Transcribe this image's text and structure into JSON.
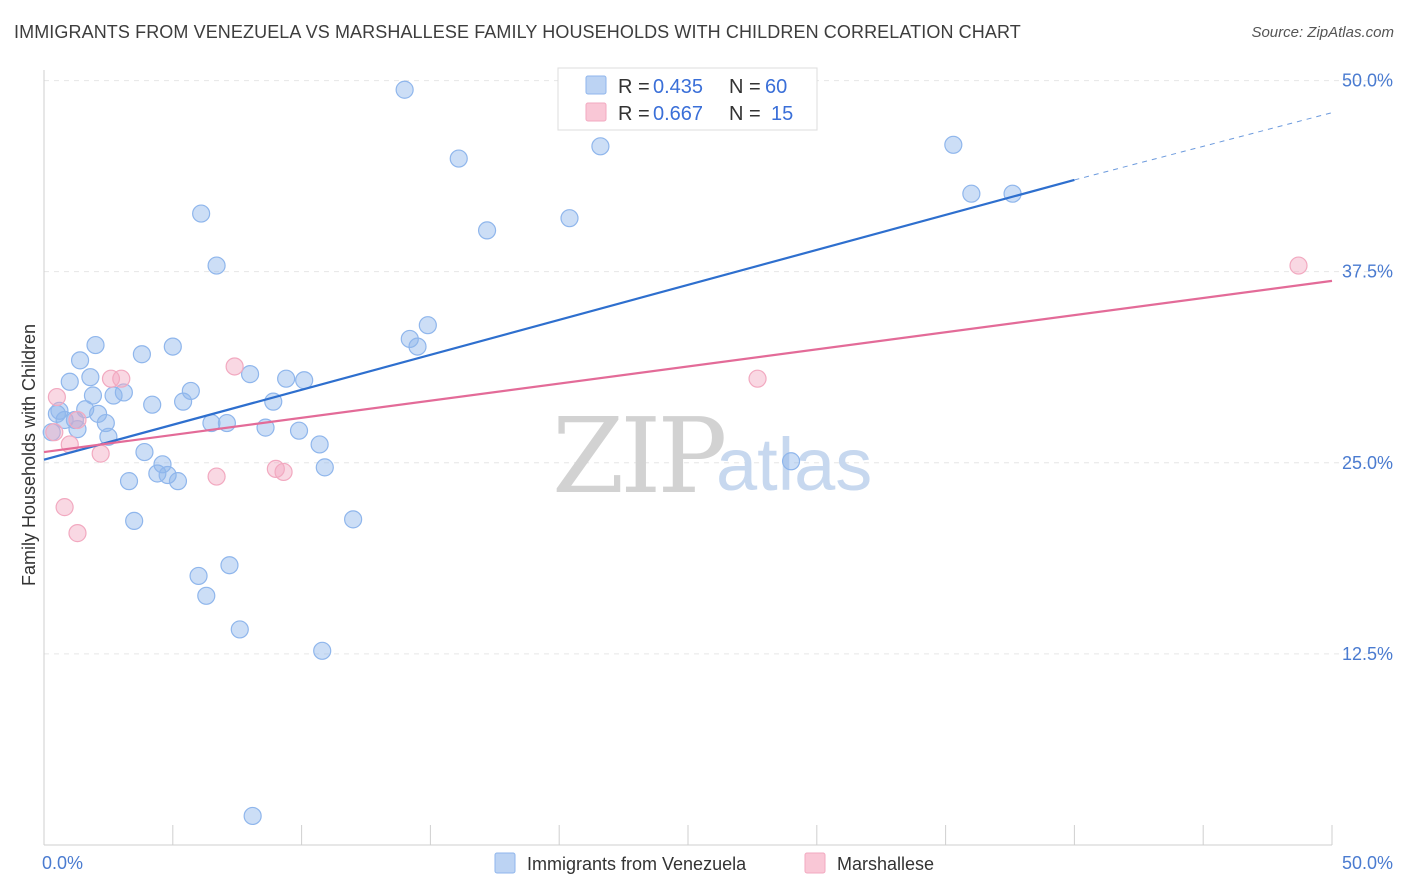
{
  "header": {
    "title": "IMMIGRANTS FROM VENEZUELA VS MARSHALLESE FAMILY HOUSEHOLDS WITH CHILDREN CORRELATION CHART",
    "source": "Source: ZipAtlas.com"
  },
  "watermark": {
    "zip": "ZIP",
    "atlas": "atlas"
  },
  "chart_data": {
    "type": "scatter",
    "title": "IMMIGRANTS FROM VENEZUELA VS MARSHALLESE FAMILY HOUSEHOLDS WITH CHILDREN CORRELATION CHART",
    "xlabel": "",
    "ylabel": "Family Households with Children",
    "xlim": [
      0,
      50
    ],
    "ylim": [
      0,
      52
    ],
    "x_tick_labels": {
      "min": "0.0%",
      "max": "50.0%"
    },
    "y_ticks": [
      {
        "value": 12.5,
        "label": "12.5%"
      },
      {
        "value": 25.0,
        "label": "25.0%"
      },
      {
        "value": 37.5,
        "label": "37.5%"
      },
      {
        "value": 50.0,
        "label": "50.0%"
      }
    ],
    "x_minor_ticks": [
      0,
      5,
      10,
      15,
      20,
      25,
      30,
      35,
      40,
      45,
      50
    ],
    "grid": true,
    "stats": [
      {
        "r_label": "R =",
        "r_value": "0.435",
        "n_label": "N =",
        "n_value": "60"
      },
      {
        "r_label": "R =",
        "r_value": "0.667",
        "n_label": "N =",
        "n_value": "15"
      }
    ],
    "series": [
      {
        "name": "Immigrants from Venezuela",
        "color": "#8fb6ec",
        "line_color": "#2e6fce",
        "trend": {
          "x0": 0,
          "y0": 25.2,
          "x1": 40,
          "y1": 43.5,
          "dash_x1": 50,
          "dash_y1": 47.9
        },
        "points": [
          [
            0.3,
            27.0
          ],
          [
            0.5,
            28.2
          ],
          [
            0.6,
            28.4
          ],
          [
            0.8,
            27.8
          ],
          [
            1.0,
            30.3
          ],
          [
            1.2,
            27.8
          ],
          [
            1.3,
            27.2
          ],
          [
            1.4,
            31.7
          ],
          [
            1.6,
            28.5
          ],
          [
            1.8,
            30.6
          ],
          [
            1.9,
            29.4
          ],
          [
            2.0,
            32.7
          ],
          [
            2.1,
            28.2
          ],
          [
            2.4,
            27.6
          ],
          [
            2.5,
            26.7
          ],
          [
            2.7,
            29.4
          ],
          [
            3.1,
            29.6
          ],
          [
            3.3,
            23.8
          ],
          [
            3.5,
            21.2
          ],
          [
            3.8,
            32.1
          ],
          [
            3.9,
            25.7
          ],
          [
            4.2,
            28.8
          ],
          [
            4.4,
            24.3
          ],
          [
            4.6,
            24.9
          ],
          [
            4.8,
            24.2
          ],
          [
            5.0,
            32.6
          ],
          [
            5.2,
            23.8
          ],
          [
            5.4,
            29.0
          ],
          [
            5.7,
            29.7
          ],
          [
            6.0,
            17.6
          ],
          [
            6.1,
            41.3
          ],
          [
            6.3,
            16.3
          ],
          [
            6.5,
            27.6
          ],
          [
            6.7,
            37.9
          ],
          [
            7.1,
            27.6
          ],
          [
            7.2,
            18.3
          ],
          [
            7.6,
            14.1
          ],
          [
            8.0,
            30.8
          ],
          [
            8.1,
            1.9
          ],
          [
            8.6,
            27.3
          ],
          [
            8.9,
            29.0
          ],
          [
            9.4,
            30.5
          ],
          [
            9.9,
            27.1
          ],
          [
            10.1,
            30.4
          ],
          [
            10.7,
            26.2
          ],
          [
            10.8,
            12.7
          ],
          [
            10.9,
            24.7
          ],
          [
            12.0,
            21.3
          ],
          [
            14.2,
            33.1
          ],
          [
            14.5,
            32.6
          ],
          [
            14.9,
            34.0
          ],
          [
            14.0,
            49.4
          ],
          [
            16.1,
            44.9
          ],
          [
            17.2,
            40.2
          ],
          [
            20.4,
            41.0
          ],
          [
            21.6,
            45.7
          ],
          [
            29.0,
            25.1
          ],
          [
            35.3,
            45.8
          ],
          [
            36.0,
            42.6
          ],
          [
            37.6,
            42.6
          ]
        ]
      },
      {
        "name": "Marshallese",
        "color": "#f2a9c0",
        "line_color": "#e36b98",
        "trend": {
          "x0": 0,
          "y0": 25.7,
          "x1": 50,
          "y1": 36.9
        },
        "points": [
          [
            0.4,
            27.0
          ],
          [
            0.5,
            29.3
          ],
          [
            1.0,
            26.2
          ],
          [
            1.3,
            27.8
          ],
          [
            0.8,
            22.1
          ],
          [
            1.3,
            20.4
          ],
          [
            2.2,
            25.6
          ],
          [
            2.6,
            30.5
          ],
          [
            3.0,
            30.5
          ],
          [
            6.7,
            24.1
          ],
          [
            7.4,
            31.3
          ],
          [
            9.0,
            24.6
          ],
          [
            9.3,
            24.4
          ],
          [
            27.7,
            30.5
          ],
          [
            48.7,
            37.9
          ]
        ]
      }
    ]
  }
}
